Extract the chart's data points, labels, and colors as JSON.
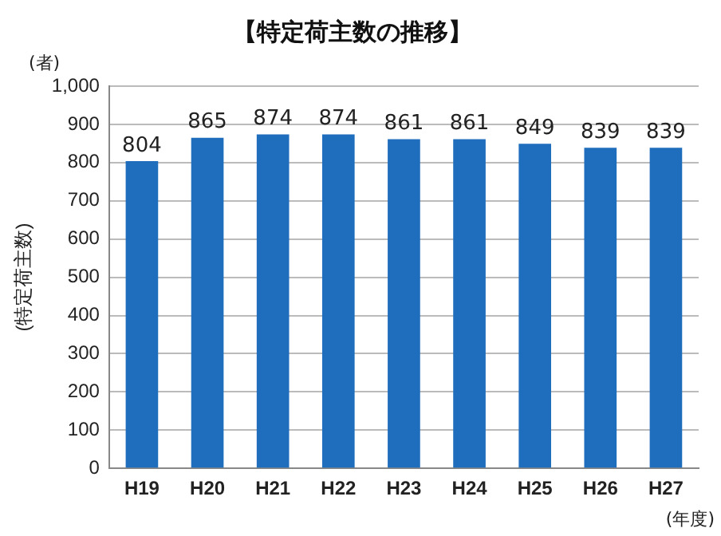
{
  "chart_data": {
    "type": "bar",
    "title": "【特定荷主数の推移】",
    "ylabel": "(特定荷主数)",
    "annotations": [
      "(者)",
      "(年度)"
    ],
    "categories": [
      "H19",
      "H20",
      "H21",
      "H22",
      "H23",
      "H24",
      "H25",
      "H26",
      "H27"
    ],
    "values": [
      804,
      865,
      874,
      874,
      861,
      861,
      849,
      839,
      839
    ],
    "color": "#1f6dbd",
    "ylim": [
      0,
      1000
    ],
    "yticks": [
      {
        "value": 0,
        "label": "0"
      },
      {
        "value": 100,
        "label": "100"
      },
      {
        "value": 200,
        "label": "200"
      },
      {
        "value": 300,
        "label": "300"
      },
      {
        "value": 400,
        "label": "400"
      },
      {
        "value": 500,
        "label": "500"
      },
      {
        "value": 600,
        "label": "600"
      },
      {
        "value": 700,
        "label": "700"
      },
      {
        "value": 800,
        "label": "800"
      },
      {
        "value": 900,
        "label": "900"
      },
      {
        "value": 1000,
        "label": "1,000"
      }
    ],
    "grid": "y",
    "data_labels": true,
    "legend": false
  }
}
